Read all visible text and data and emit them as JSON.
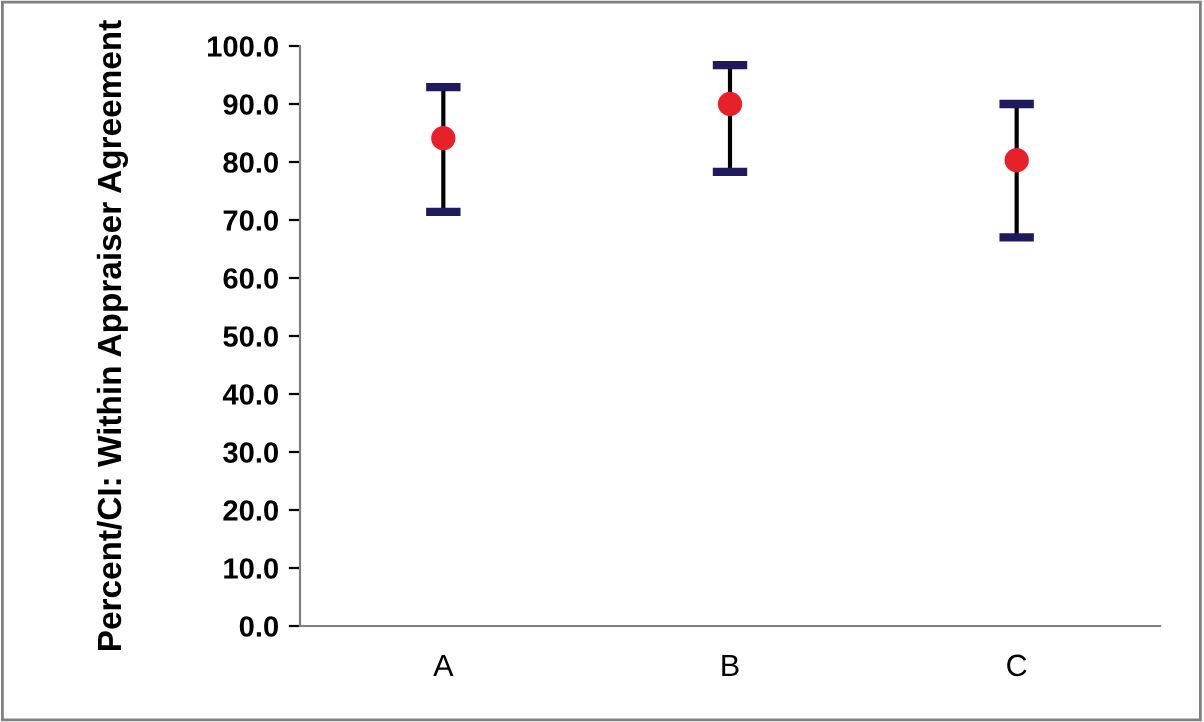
{
  "chart_data": {
    "type": "scatter",
    "ylabel": "Percent/CI: Within Appraiser Agreement",
    "categories": [
      "A",
      "B",
      "C"
    ],
    "series": [
      {
        "color": "#e8202a",
        "values": [
          84.1,
          90.0,
          80.3
        ],
        "errors": [
          [
            71.4,
            92.9
          ],
          [
            78.3,
            96.7
          ],
          [
            67.0,
            90.0
          ]
        ]
      }
    ],
    "ylim": [
      0,
      100
    ],
    "yticks": [
      {
        "value": 0,
        "label": "0.0"
      },
      {
        "value": 10,
        "label": "10.0"
      },
      {
        "value": 20,
        "label": "20.0"
      },
      {
        "value": 30,
        "label": "30.0"
      },
      {
        "value": 40,
        "label": "40.0"
      },
      {
        "value": 50,
        "label": "50.0"
      },
      {
        "value": 60,
        "label": "60.0"
      },
      {
        "value": 70,
        "label": "70.0"
      },
      {
        "value": 80,
        "label": "80.0"
      },
      {
        "value": 90,
        "label": "90.0"
      },
      {
        "value": 100,
        "label": "100.0"
      }
    ],
    "marker": "circle",
    "grid": false,
    "legend": false
  }
}
